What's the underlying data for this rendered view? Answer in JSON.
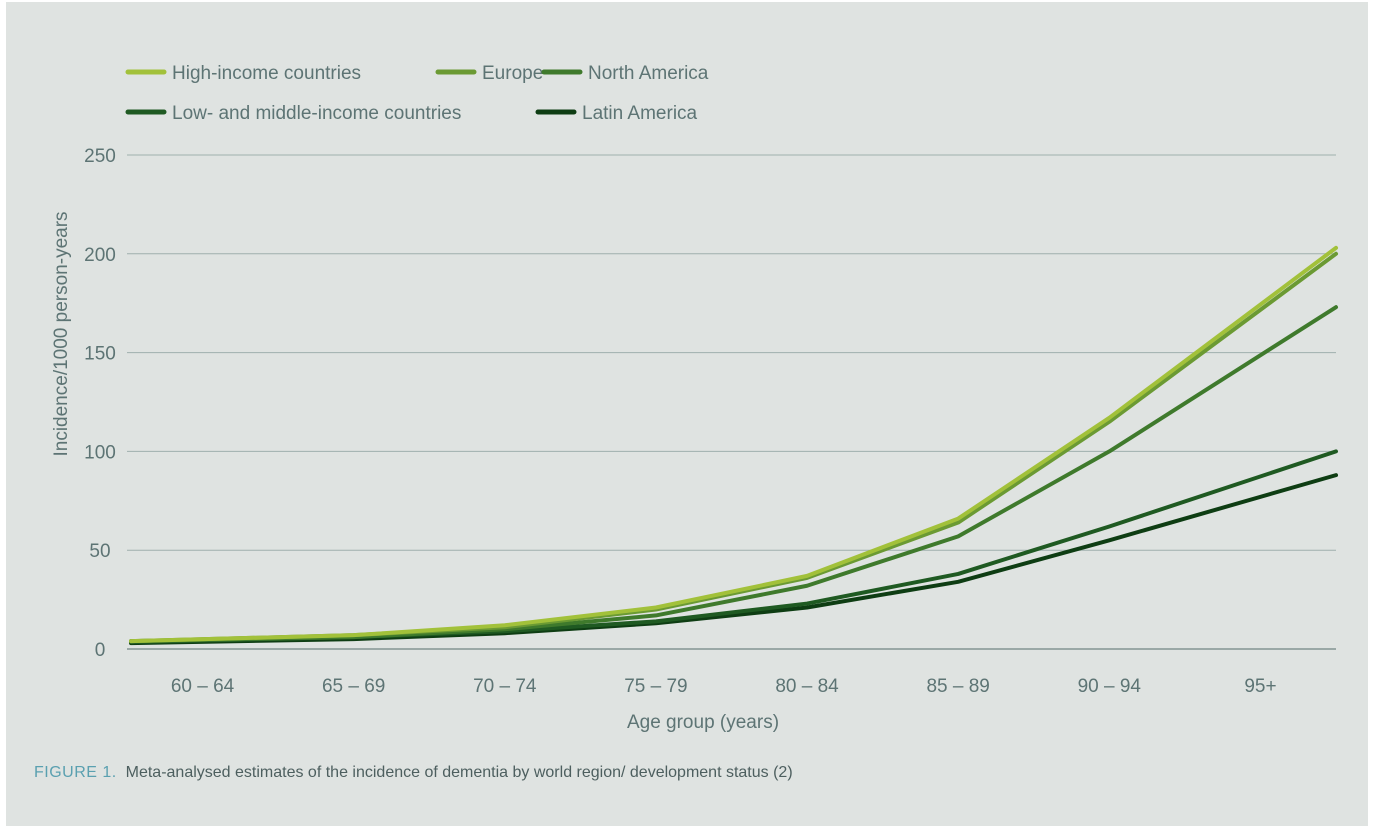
{
  "chart_data": {
    "type": "line",
    "title": "",
    "xlabel": "Age group  (years)",
    "ylabel": "Incidence/1000 person-years",
    "categories": [
      "60 – 64",
      "65 – 69",
      "70 – 74",
      "75 – 79",
      "80 – 84",
      "85 – 89",
      "90 – 94",
      "95+"
    ],
    "ylim": [
      0,
      250
    ],
    "yticks": [
      0,
      50,
      100,
      150,
      200,
      250
    ],
    "grid": true,
    "legend_position": "top-left",
    "series": [
      {
        "name": "High-income countries",
        "color": "#a2c13a",
        "values": [
          4,
          7,
          12,
          21,
          37,
          66,
          117,
          203
        ]
      },
      {
        "name": "Europe",
        "color": "#6b9a33",
        "values": [
          4,
          7,
          11,
          20,
          36,
          64,
          115,
          200
        ]
      },
      {
        "name": "North America",
        "color": "#3f7a2c",
        "values": [
          4,
          6,
          10,
          17,
          32,
          57,
          100,
          173
        ]
      },
      {
        "name": "Low- and middle-income countries",
        "color": "#1f5a22",
        "values": [
          3.5,
          6,
          9,
          14,
          23,
          38,
          62,
          100
        ]
      },
      {
        "name": "Latin America",
        "color": "#0e3d13",
        "values": [
          3,
          5,
          8,
          13,
          21,
          34,
          55,
          88
        ]
      }
    ]
  },
  "caption": {
    "label": "FIGURE 1.",
    "text": "Meta-analysed estimates of the incidence of dementia by world region/ development status (2)"
  }
}
